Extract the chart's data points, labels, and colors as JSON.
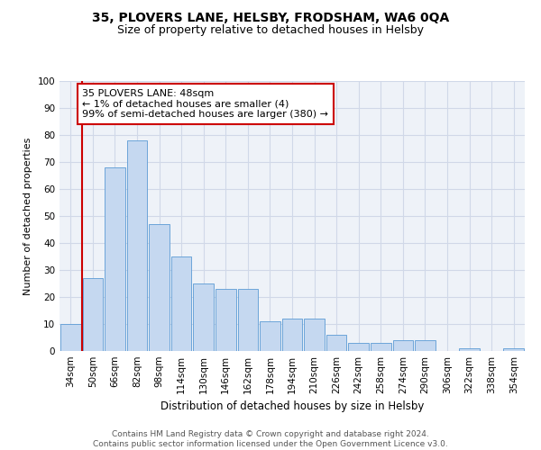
{
  "title": "35, PLOVERS LANE, HELSBY, FRODSHAM, WA6 0QA",
  "subtitle": "Size of property relative to detached houses in Helsby",
  "xlabel": "Distribution of detached houses by size in Helsby",
  "ylabel": "Number of detached properties",
  "categories": [
    "34sqm",
    "50sqm",
    "66sqm",
    "82sqm",
    "98sqm",
    "114sqm",
    "130sqm",
    "146sqm",
    "162sqm",
    "178sqm",
    "194sqm",
    "210sqm",
    "226sqm",
    "242sqm",
    "258sqm",
    "274sqm",
    "290sqm",
    "306sqm",
    "322sqm",
    "338sqm",
    "354sqm"
  ],
  "values": [
    10,
    27,
    68,
    78,
    47,
    35,
    25,
    23,
    23,
    11,
    12,
    12,
    6,
    3,
    3,
    4,
    4,
    0,
    1,
    0,
    1
  ],
  "bar_color": "#c5d8f0",
  "bar_edge_color": "#5b9bd5",
  "highlight_color": "#cc0000",
  "annotation_text": "35 PLOVERS LANE: 48sqm\n← 1% of detached houses are smaller (4)\n99% of semi-detached houses are larger (380) →",
  "annotation_box_color": "#ffffff",
  "annotation_box_edge": "#cc0000",
  "grid_color": "#d0d8e8",
  "bg_color": "#eef2f8",
  "ylim": [
    0,
    100
  ],
  "yticks": [
    0,
    10,
    20,
    30,
    40,
    50,
    60,
    70,
    80,
    90,
    100
  ],
  "footer": "Contains HM Land Registry data © Crown copyright and database right 2024.\nContains public sector information licensed under the Open Government Licence v3.0.",
  "title_fontsize": 10,
  "subtitle_fontsize": 9,
  "xlabel_fontsize": 8.5,
  "ylabel_fontsize": 8,
  "tick_fontsize": 7.5,
  "annotation_fontsize": 8,
  "footer_fontsize": 6.5
}
